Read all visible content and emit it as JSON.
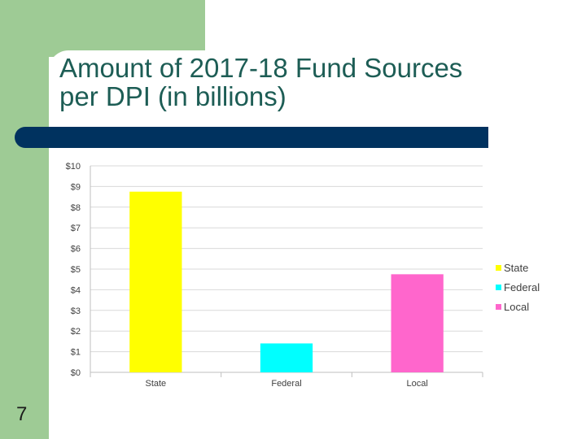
{
  "slide": {
    "title_line1": "Amount of 2017-18 Fund Sources",
    "title_line2": "per DPI (in billions)",
    "page_number": "7"
  },
  "colors": {
    "green": "#9ecb95",
    "navy": "#00325f",
    "title": "#1d5d55"
  },
  "chart_data": {
    "type": "bar",
    "categories": [
      "State",
      "Federal",
      "Local"
    ],
    "values": [
      8.75,
      1.4,
      4.75
    ],
    "colors": [
      "#ffff00",
      "#00ffff",
      "#ff66cc"
    ],
    "ylim": [
      0,
      10
    ],
    "yticks": [
      0,
      1,
      2,
      3,
      4,
      5,
      6,
      7,
      8,
      9,
      10
    ],
    "ytick_prefix": "$",
    "legend": [
      "State",
      "Federal",
      "Local"
    ],
    "legend_position": "right",
    "grid": true,
    "xlabel": "",
    "ylabel": ""
  }
}
